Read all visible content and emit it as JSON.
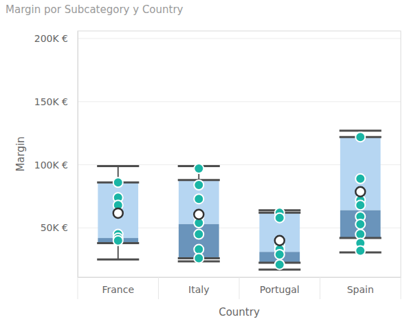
{
  "chart_data": {
    "type": "box",
    "title": "Margin por Subcategory y Country",
    "x_label": "Country",
    "y_label": "Margin",
    "categories": [
      "France",
      "Italy",
      "Portugal",
      "Spain"
    ],
    "whisker_low": [
      25000,
      23500,
      17000,
      30600
    ],
    "q1": [
      38000,
      26000,
      22400,
      42000
    ],
    "median": [
      42000,
      53000,
      31000,
      64000
    ],
    "q3": [
      86000,
      88000,
      62000,
      122000
    ],
    "whisker_high": [
      99000,
      99000,
      64000,
      127000
    ],
    "mean": [
      61700,
      60700,
      40000,
      78700
    ],
    "points": [
      [
        86000,
        74000,
        68000,
        45000,
        42000,
        40000
      ],
      [
        97000,
        84000,
        73000,
        59000,
        54000,
        45000,
        33000,
        26000
      ],
      [
        62000,
        58000,
        36000,
        33000,
        29000,
        21000
      ],
      [
        122000,
        89000,
        72000,
        68000,
        59000,
        53000,
        45000,
        38000,
        32000
      ]
    ],
    "ylim": [
      11000,
      206000
    ],
    "yticks": [
      {
        "value": 50000,
        "label": "50K €"
      },
      {
        "value": 100000,
        "label": "100K €"
      },
      {
        "value": 150000,
        "label": "150K €"
      },
      {
        "value": 200000,
        "label": "200K €"
      }
    ],
    "grid": true
  }
}
